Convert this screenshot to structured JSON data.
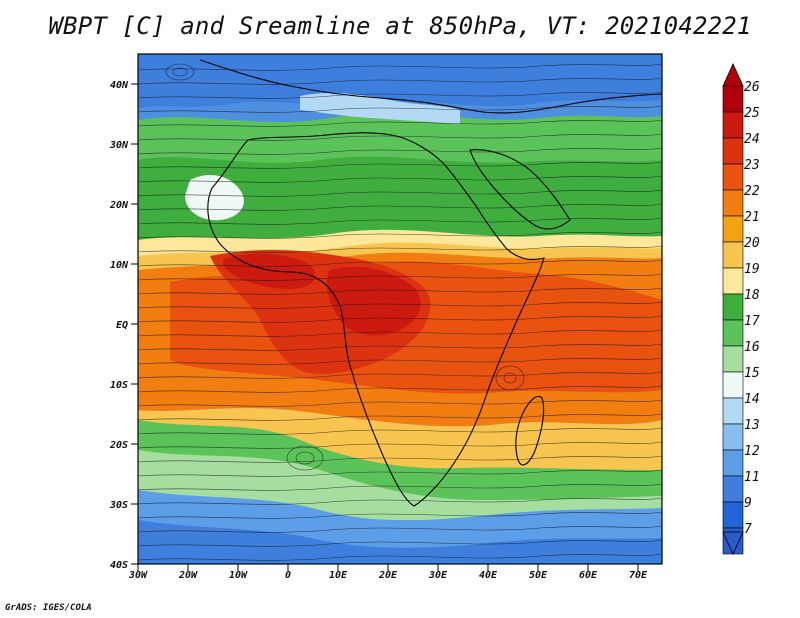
{
  "title": "WBPT [C] and Sreamline at 850hPa, VT: 2021042221",
  "credit": "GrADS: IGES/COLA",
  "map": {
    "lon_range": [
      -30,
      78
    ],
    "lat_range": [
      -40,
      45
    ],
    "lon_ticks": [
      "30W",
      "20W",
      "10W",
      "0",
      "10E",
      "20E",
      "30E",
      "40E",
      "50E",
      "60E",
      "70E"
    ],
    "lat_ticks": [
      "40N",
      "30N",
      "20N",
      "10N",
      "EQ",
      "10S",
      "20S",
      "30S",
      "40S"
    ]
  },
  "colorbar": {
    "labels": [
      "26",
      "25",
      "24",
      "23",
      "22",
      "21",
      "20",
      "19",
      "18",
      "17",
      "16",
      "15",
      "14",
      "13",
      "12",
      "11",
      "9",
      "7"
    ],
    "colors": [
      "#b0000c",
      "#cc1a10",
      "#dd3210",
      "#e9520f",
      "#f27d10",
      "#f5a114",
      "#f8c650",
      "#fce79a",
      "#3fae3f",
      "#5cc35a",
      "#a6dea0",
      "#eef8f4",
      "#b4d9f4",
      "#88bff0",
      "#5d9ee8",
      "#3e7fde",
      "#2265d6",
      "#2a5bc8"
    ],
    "top_arrow_color": "#b0000c",
    "bottom_arrow_color": "#2a5bc8"
  }
}
